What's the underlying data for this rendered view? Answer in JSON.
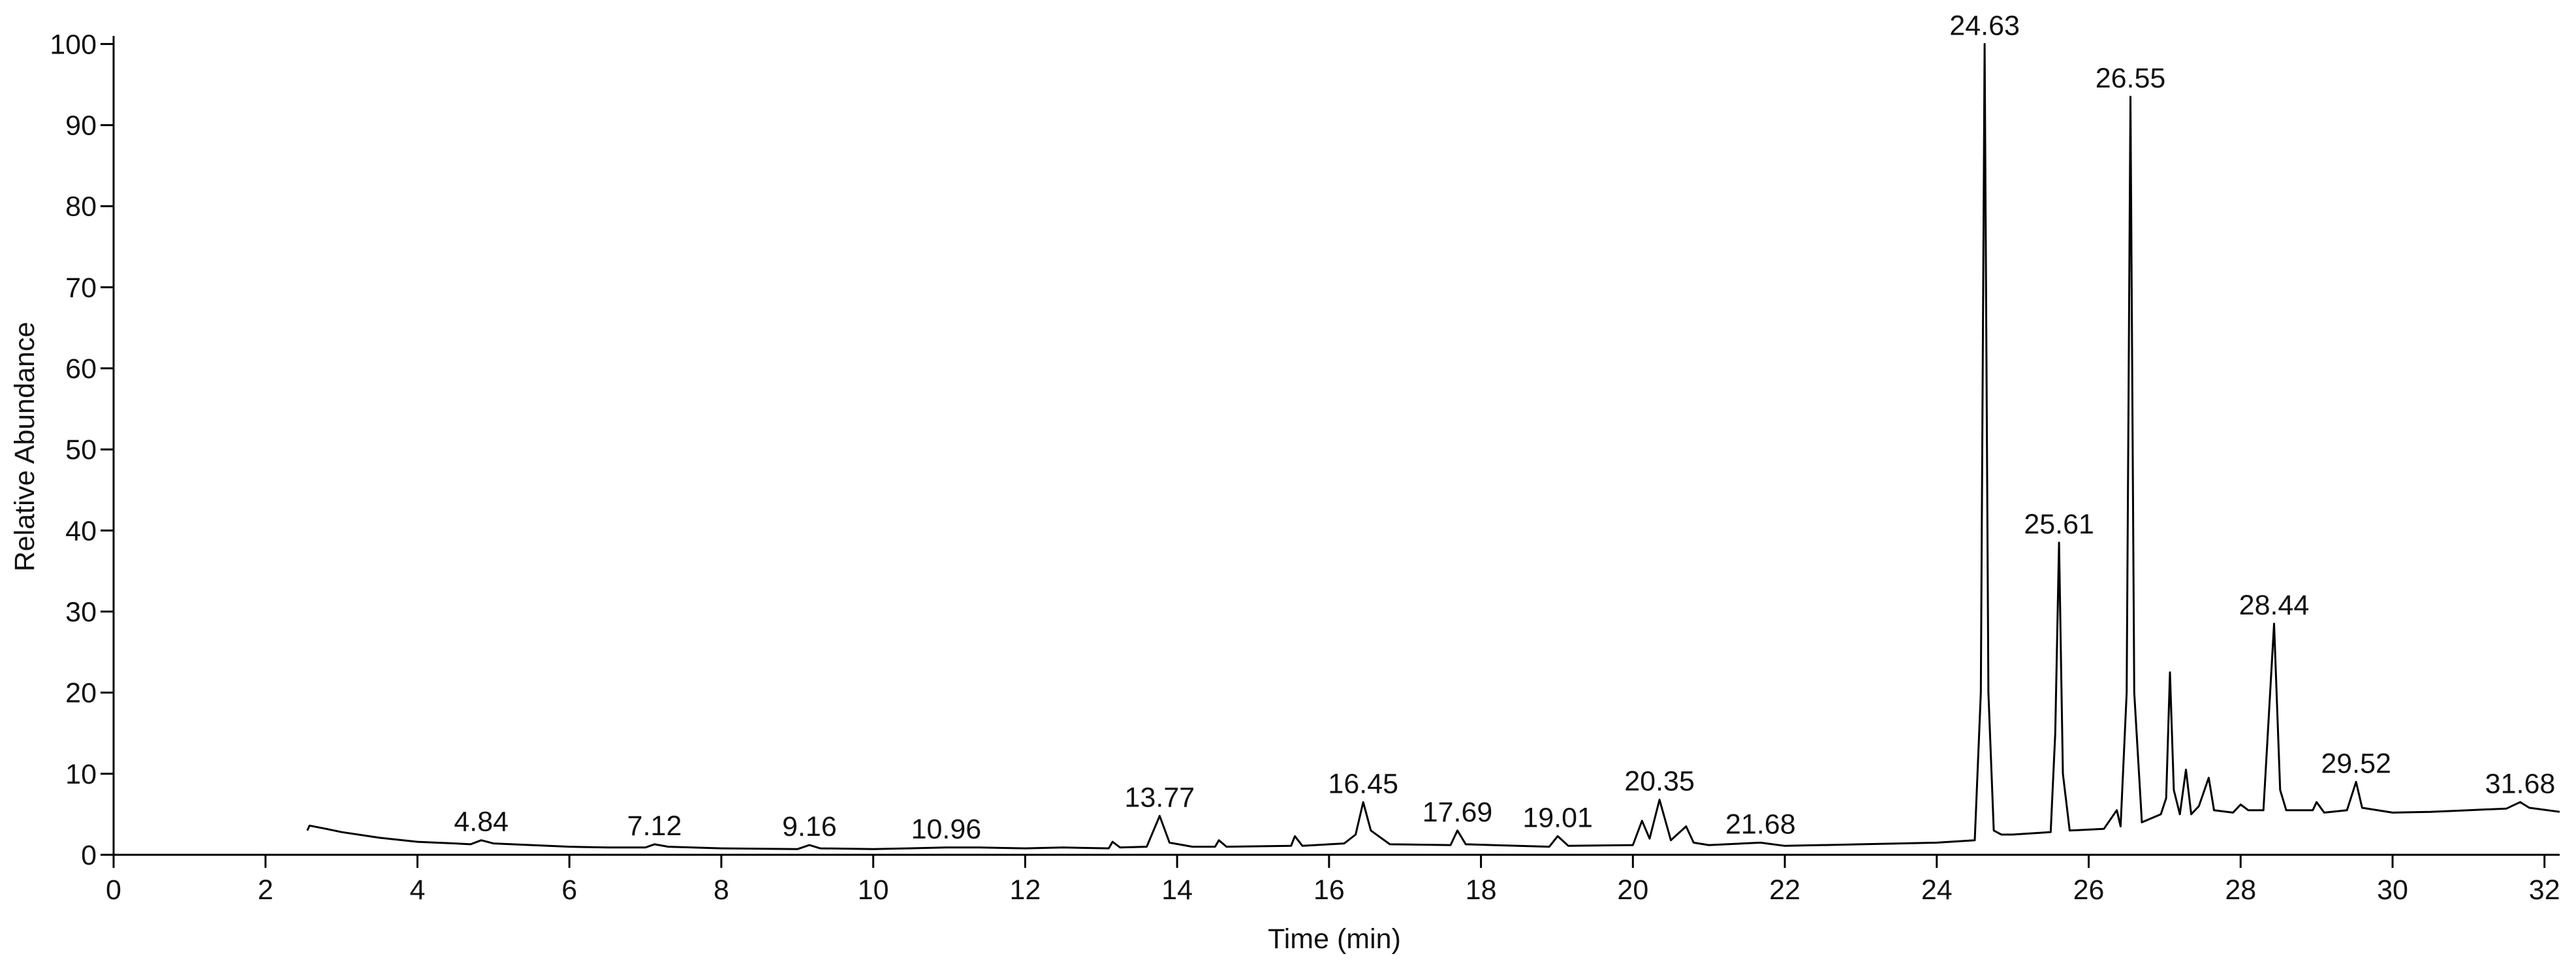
{
  "chart_data": {
    "type": "line",
    "xlabel": "Time (min)",
    "ylabel": "Relative Abundance",
    "xlim": [
      0,
      32.2
    ],
    "ylim": [
      0,
      101
    ],
    "xticks": [
      0,
      2,
      4,
      6,
      8,
      10,
      12,
      14,
      16,
      18,
      20,
      22,
      24,
      26,
      28,
      30,
      32
    ],
    "yticks": [
      0,
      10,
      20,
      30,
      40,
      50,
      60,
      70,
      80,
      90,
      100
    ],
    "color": "#000000",
    "x": [
      2.55,
      2.58,
      2.8,
      3.0,
      3.5,
      4.0,
      4.5,
      4.7,
      4.84,
      5.0,
      5.5,
      6.0,
      6.5,
      7.0,
      7.12,
      7.3,
      8.0,
      9.0,
      9.16,
      9.3,
      10.0,
      10.96,
      11.4,
      12.0,
      12.5,
      13.1,
      13.15,
      13.25,
      13.6,
      13.77,
      13.9,
      14.2,
      14.5,
      14.55,
      14.65,
      15.5,
      15.55,
      15.65,
      16.2,
      16.35,
      16.45,
      16.55,
      16.8,
      17.6,
      17.69,
      17.8,
      18.9,
      19.01,
      19.15,
      20.0,
      20.12,
      20.22,
      20.35,
      20.5,
      20.7,
      20.8,
      21.0,
      21.68,
      22.0,
      23.0,
      24.0,
      24.5,
      24.58,
      24.63,
      24.68,
      24.75,
      24.85,
      25.0,
      25.5,
      25.56,
      25.61,
      25.66,
      25.75,
      26.2,
      26.37,
      26.42,
      26.5,
      26.55,
      26.6,
      26.7,
      26.95,
      27.02,
      27.07,
      27.12,
      27.2,
      27.28,
      27.35,
      27.45,
      27.58,
      27.65,
      27.9,
      28.0,
      28.1,
      28.3,
      28.44,
      28.52,
      28.6,
      28.95,
      29.0,
      29.1,
      29.4,
      29.52,
      29.6,
      30.0,
      30.5,
      31.0,
      31.5,
      31.68,
      31.8,
      32.2
    ],
    "y": [
      3.0,
      3.6,
      3.2,
      2.8,
      2.1,
      1.6,
      1.4,
      1.3,
      1.8,
      1.4,
      1.2,
      1.0,
      0.9,
      0.9,
      1.3,
      1.0,
      0.8,
      0.7,
      1.2,
      0.8,
      0.7,
      0.9,
      0.9,
      0.8,
      0.9,
      0.8,
      1.6,
      0.9,
      1.0,
      4.8,
      1.5,
      1.0,
      1.0,
      1.8,
      1.0,
      1.1,
      2.3,
      1.1,
      1.4,
      2.5,
      6.5,
      3.0,
      1.3,
      1.2,
      3.0,
      1.3,
      1.0,
      2.3,
      1.1,
      1.2,
      4.2,
      2.0,
      6.8,
      1.8,
      3.5,
      1.5,
      1.2,
      1.5,
      1.1,
      1.3,
      1.5,
      1.8,
      20,
      100,
      20,
      3.0,
      2.5,
      2.5,
      2.8,
      15,
      38.5,
      10,
      3.0,
      3.2,
      5.5,
      3.5,
      20,
      93.5,
      20,
      4,
      5,
      7,
      22.5,
      8,
      5,
      10.5,
      5,
      6,
      9.5,
      5.5,
      5.2,
      6.2,
      5.5,
      5.5,
      28.5,
      8,
      5.5,
      5.5,
      6.5,
      5.2,
      5.5,
      9,
      5.8,
      5.2,
      5.3,
      5.5,
      5.7,
      6.5,
      5.8,
      5.3
    ],
    "peak_labels": [
      4.84,
      7.12,
      9.16,
      10.96,
      13.77,
      16.45,
      17.69,
      19.01,
      20.35,
      21.68,
      24.63,
      25.61,
      26.55,
      28.44,
      29.52,
      31.68
    ]
  }
}
